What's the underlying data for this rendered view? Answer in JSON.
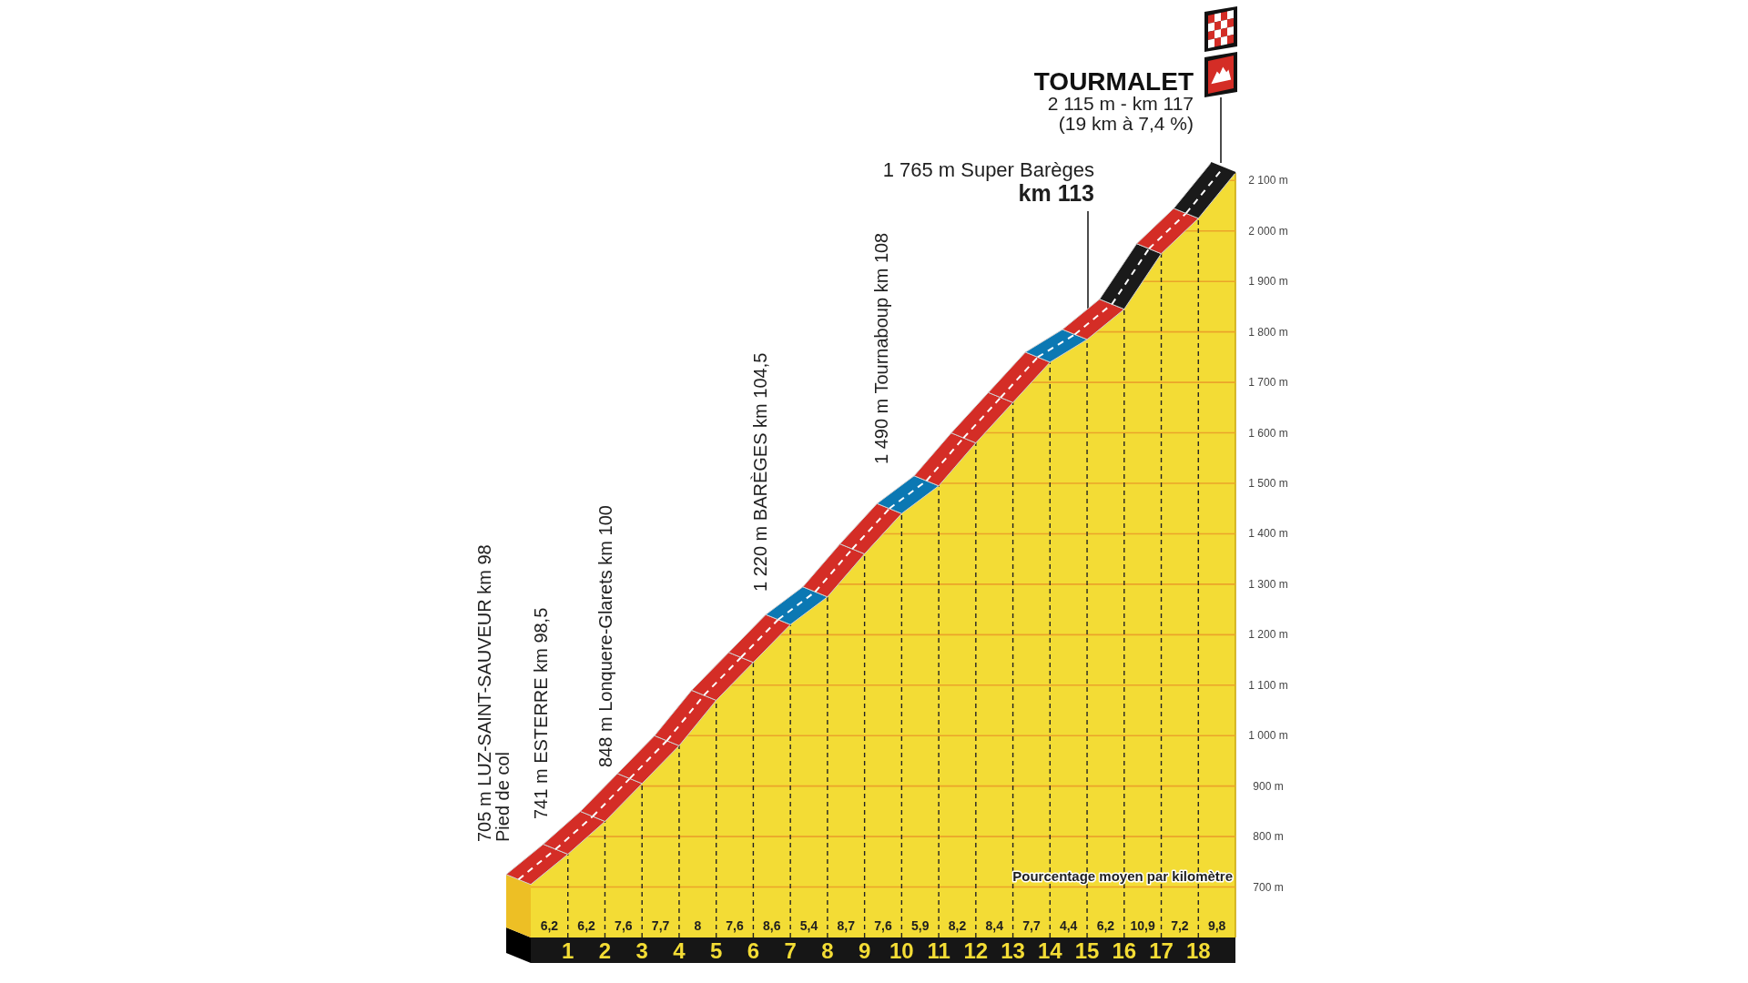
{
  "chart_data": {
    "type": "area",
    "title": "TOURMALET",
    "x": [
      0,
      1,
      2,
      3,
      4,
      5,
      6,
      7,
      8,
      9,
      10,
      11,
      12,
      13,
      14,
      15,
      16,
      17,
      18,
      19
    ],
    "series": [
      {
        "color": "#f3dc35",
        "colors": [
          "#d42d26",
          "#d42d26",
          "#d42d26",
          "#d42d26",
          "#d42d26",
          "#d42d26",
          "#d42d26",
          "#0b78b3",
          "#d42d26",
          "#d42d26",
          "#0b78b3",
          "#d42d26",
          "#d42d26",
          "#d42d26",
          "#0b78b3",
          "#d42d26",
          "#1a1a1a",
          "#d42d26",
          "#1a1a1a",
          "#1a1a1a"
        ],
        "values": [
          705,
          765,
          830,
          905,
          980,
          1070,
          1145,
          1220,
          1275,
          1360,
          1440,
          1495,
          1580,
          1660,
          1740,
          1785,
          1845,
          1955,
          2025,
          2115
        ]
      }
    ],
    "xlim": [
      0,
      19
    ],
    "xticks": [
      1,
      2,
      3,
      4,
      5,
      6,
      7,
      8,
      9,
      10,
      11,
      12,
      13,
      14,
      15,
      16,
      17,
      18
    ],
    "ylim": [
      600,
      2115
    ],
    "yticks": [
      {
        "value": 700,
        "label": "700 m"
      },
      {
        "value": 800,
        "label": "800 m"
      },
      {
        "value": 900,
        "label": "900 m"
      },
      {
        "value": 1000,
        "label": "1 000 m"
      },
      {
        "value": 1100,
        "label": "1 100 m"
      },
      {
        "value": 1200,
        "label": "1 200 m"
      },
      {
        "value": 1300,
        "label": "1 300 m"
      },
      {
        "value": 1400,
        "label": "1 400 m"
      },
      {
        "value": 1500,
        "label": "1 500 m"
      },
      {
        "value": 1600,
        "label": "1 600 m"
      },
      {
        "value": 1700,
        "label": "1 700 m"
      },
      {
        "value": 1800,
        "label": "1 800 m"
      },
      {
        "value": 1900,
        "label": "1 900 m"
      },
      {
        "value": 2000,
        "label": "2 000 m"
      },
      {
        "value": 2100,
        "label": "2 100 m"
      }
    ],
    "grid": true,
    "annotations": [
      "705 m LUZ-SAINT-SAUVEUR km 98",
      "Pied de col",
      "741 m ESTERRE km 98,5",
      "848 m Lonquere-Glarets km 100",
      "1 220 m BARÈGES km 104,5",
      "1 490 m Tournaboup km 108",
      "1 765 m Super Barèges",
      "km 113",
      "2 115 m - km 117",
      "(19 km à 7,4 %)",
      "Pourcentage moyen par kilomètre",
      "6,2",
      "6,2",
      "7,6",
      "7,7",
      "8",
      "7,6",
      "8,6",
      "5,4",
      "8,7",
      "7,6",
      "5,9",
      "8,2",
      "8,4",
      "7,7",
      "4,4",
      "6,2",
      "10,9",
      "7,2",
      "9,8"
    ]
  }
}
